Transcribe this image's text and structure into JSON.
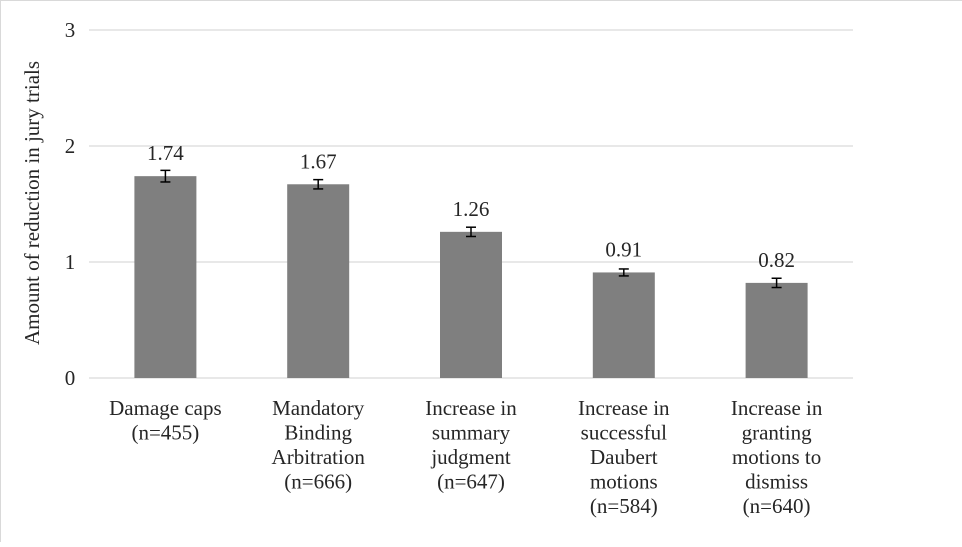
{
  "chart_data": {
    "type": "bar",
    "title": "",
    "xlabel": "",
    "ylabel": "Amount of reduction in jury trials",
    "ylim": [
      0,
      3
    ],
    "yticks": [
      0,
      1,
      2,
      3
    ],
    "grid": true,
    "legend": "none",
    "categories": [
      [
        "Damage caps",
        "(n=455)"
      ],
      [
        "Mandatory",
        "Binding",
        "Arbitration",
        "(n=666)"
      ],
      [
        "Increase in",
        "summary",
        "judgment",
        "(n=647)"
      ],
      [
        "Increase in",
        "successful",
        "Daubert",
        "motions",
        "(n=584)"
      ],
      [
        "Increase in",
        "granting",
        "motions to",
        "dismiss",
        "(n=640)"
      ]
    ],
    "values": [
      1.74,
      1.67,
      1.26,
      0.91,
      0.82
    ],
    "value_labels": [
      "1.74",
      "1.67",
      "1.26",
      "0.91",
      "0.82"
    ],
    "error": [
      0.05,
      0.04,
      0.04,
      0.03,
      0.04
    ],
    "colors": {
      "bar": "#7f7f7f",
      "grid": "#d9d9d9",
      "text": "#262626",
      "error_bar": "#000000"
    }
  }
}
